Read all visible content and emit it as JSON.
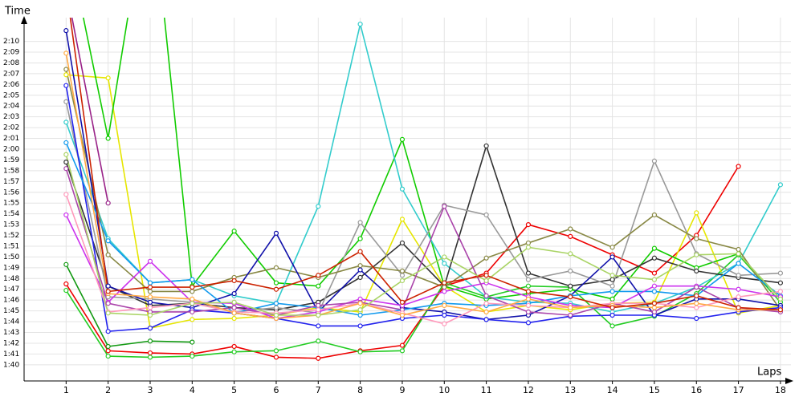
{
  "chart_data": {
    "type": "line",
    "ylabel": "Time",
    "xlabel": "Laps",
    "x": [
      1,
      2,
      3,
      4,
      5,
      6,
      7,
      8,
      9,
      10,
      11,
      12,
      13,
      14,
      15,
      16,
      17,
      18
    ],
    "xlim": [
      0,
      18.25
    ],
    "xticks": [
      1,
      2,
      3,
      4,
      5,
      6,
      7,
      8,
      9,
      10,
      11,
      12,
      13,
      14,
      15,
      16,
      17,
      18
    ],
    "ylim": [
      98.5,
      132.2
    ],
    "yticks": [
      {
        "value": 100,
        "label": "1:40"
      },
      {
        "value": 101,
        "label": "1:41"
      },
      {
        "value": 102,
        "label": "1:42"
      },
      {
        "value": 103,
        "label": "1:43"
      },
      {
        "value": 104,
        "label": "1:44"
      },
      {
        "value": 105,
        "label": "1:45"
      },
      {
        "value": 106,
        "label": "1:46"
      },
      {
        "value": 107,
        "label": "1:47"
      },
      {
        "value": 108,
        "label": "1:48"
      },
      {
        "value": 109,
        "label": "1:49"
      },
      {
        "value": 110,
        "label": "1:50"
      },
      {
        "value": 111,
        "label": "1:51"
      },
      {
        "value": 112,
        "label": "1:52"
      },
      {
        "value": 113,
        "label": "1:53"
      },
      {
        "value": 114,
        "label": "1:54"
      },
      {
        "value": 115,
        "label": "1:55"
      },
      {
        "value": 116,
        "label": "1:56"
      },
      {
        "value": 117,
        "label": "1:57"
      },
      {
        "value": 118,
        "label": "1:58"
      },
      {
        "value": 119,
        "label": "1:59"
      },
      {
        "value": 120,
        "label": "2:00"
      },
      {
        "value": 121,
        "label": "2:01"
      },
      {
        "value": 122,
        "label": "2:02"
      },
      {
        "value": 123,
        "label": "2:03"
      },
      {
        "value": 124,
        "label": "2:04"
      },
      {
        "value": 125,
        "label": "2:05"
      },
      {
        "value": 126,
        "label": "2:06"
      },
      {
        "value": 127,
        "label": "2:07"
      },
      {
        "value": 128,
        "label": "2:08"
      },
      {
        "value": 129,
        "label": "2:09"
      },
      {
        "value": 130,
        "label": "2:10"
      }
    ],
    "grid": true,
    "series": [
      {
        "color": "#ee0000",
        "values": [
          107.5,
          101.3,
          101.1,
          101.0,
          101.7,
          100.7,
          100.6,
          101.3,
          101.8,
          107.3,
          108.5,
          113.0,
          111.9,
          110.2,
          108.5,
          112.0,
          118.4,
          null
        ]
      },
      {
        "color": "#22cc22",
        "values": [
          106.9,
          100.8,
          100.7,
          100.8,
          101.2,
          101.3,
          102.2,
          101.2,
          101.3,
          107.6,
          106.3,
          107.3,
          107.2,
          103.6,
          104.5,
          106.6,
          110.2,
          105.8
        ]
      },
      {
        "color": "#119911",
        "values": [
          109.3,
          101.7,
          102.2,
          102.1,
          null,
          null,
          null,
          null,
          null,
          null,
          null,
          null,
          null,
          null,
          null,
          null,
          null,
          null
        ]
      },
      {
        "color": "#e6e600",
        "values": [
          126.9,
          126.6,
          103.4,
          104.2,
          104.3,
          104.6,
          105.3,
          104.9,
          113.5,
          107.3,
          104.9,
          105.5,
          105.1,
          105.7,
          105.8,
          114.1,
          104.8,
          105.5
        ]
      },
      {
        "color": "#11cc00",
        "values": [
          140,
          121.0,
          145,
          107.3,
          112.4,
          107.6,
          107.3,
          111.7,
          120.9,
          107.3,
          106.1,
          106.6,
          107.0,
          106.1,
          110.8,
          109.0,
          110.3,
          106.1
        ]
      },
      {
        "color": "#33cccc",
        "values": [
          122.5,
          111.7,
          107.6,
          107.9,
          106.4,
          105.7,
          114.7,
          131.6,
          116.3,
          109.4,
          106.3,
          105.8,
          105.7,
          104.9,
          105.7,
          107.2,
          109.4,
          116.7
        ]
      },
      {
        "color": "#333333",
        "values": [
          118.8,
          107.3,
          105.5,
          105.7,
          105.3,
          105.1,
          105.8,
          108.1,
          111.3,
          107.3,
          120.3,
          108.5,
          107.3,
          107.9,
          109.9,
          108.7,
          108.1,
          107.6
        ]
      },
      {
        "color": "#999999",
        "values": [
          124.4,
          106.3,
          106.1,
          105.8,
          104.9,
          105.3,
          104.8,
          113.2,
          108.3,
          114.8,
          113.9,
          107.9,
          108.7,
          107.3,
          118.9,
          110.3,
          108.3,
          108.5
        ]
      },
      {
        "color": "#888844",
        "values": [
          127.4,
          110.2,
          106.8,
          106.8,
          108.1,
          109.0,
          108.1,
          109.2,
          108.7,
          107.2,
          109.9,
          111.3,
          112.6,
          110.9,
          113.9,
          111.7,
          110.7,
          105.1
        ]
      },
      {
        "color": "#1111aa",
        "values": [
          131.0,
          107.3,
          105.8,
          105.3,
          106.6,
          112.2,
          104.9,
          108.8,
          105.3,
          104.9,
          104.2,
          104.6,
          106.4,
          110.0,
          104.6,
          106.1,
          106.1,
          105.5
        ]
      },
      {
        "color": "#2222ee",
        "values": [
          125.9,
          103.1,
          103.4,
          105.1,
          104.8,
          104.3,
          103.6,
          103.6,
          104.3,
          104.6,
          104.2,
          103.9,
          104.5,
          104.6,
          104.6,
          104.3,
          104.9,
          105.3
        ]
      },
      {
        "color": "#1199ee",
        "values": [
          120.6,
          111.5,
          107.6,
          107.9,
          104.8,
          105.7,
          105.3,
          104.6,
          105.1,
          105.7,
          105.5,
          105.7,
          106.4,
          106.8,
          106.8,
          106.4,
          109.4,
          106.4
        ]
      },
      {
        "color": "#cc33ee",
        "values": [
          113.9,
          105.8,
          109.6,
          105.8,
          105.7,
          104.3,
          104.9,
          106.1,
          105.5,
          106.8,
          107.6,
          106.3,
          105.5,
          105.3,
          107.3,
          107.3,
          107.0,
          106.3
        ]
      },
      {
        "color": "#992288",
        "values": [
          135,
          115.0,
          null,
          null,
          null,
          null,
          null,
          null,
          null,
          null,
          null,
          null,
          null,
          null,
          null,
          null,
          null,
          null
        ]
      },
      {
        "color": "#aa44aa",
        "values": [
          118.2,
          105.7,
          104.9,
          104.9,
          105.3,
          104.6,
          105.5,
          105.8,
          105.1,
          114.7,
          106.4,
          104.9,
          104.6,
          105.7,
          104.9,
          107.2,
          105.3,
          104.9
        ]
      },
      {
        "color": "#ff99bb",
        "values": [
          115.8,
          104.9,
          105.3,
          105.7,
          104.9,
          104.8,
          105.1,
          105.7,
          104.8,
          103.8,
          105.7,
          105.5,
          105.3,
          105.7,
          105.7,
          105.3,
          106.3,
          106.8
        ]
      },
      {
        "color": "#ffaa44",
        "values": [
          128.9,
          106.6,
          106.3,
          106.1,
          104.8,
          104.3,
          104.6,
          105.7,
          104.6,
          105.5,
          104.9,
          106.1,
          105.3,
          105.5,
          105.3,
          105.7,
          105.1,
          105.1
        ]
      },
      {
        "color": "#aad466",
        "values": [
          119.5,
          104.8,
          104.6,
          105.7,
          105.8,
          104.6,
          104.6,
          105.1,
          107.8,
          110.0,
          107.8,
          110.9,
          110.3,
          108.3,
          107.9,
          110.2,
          110.3,
          106.1
        ]
      },
      {
        "color": "#cc2200",
        "values": [
          135,
          106.8,
          107.2,
          107.2,
          107.8,
          107.0,
          108.3,
          110.5,
          105.8,
          107.6,
          108.3,
          106.8,
          106.3,
          105.3,
          105.7,
          106.4,
          105.3,
          105.1
        ]
      }
    ]
  }
}
